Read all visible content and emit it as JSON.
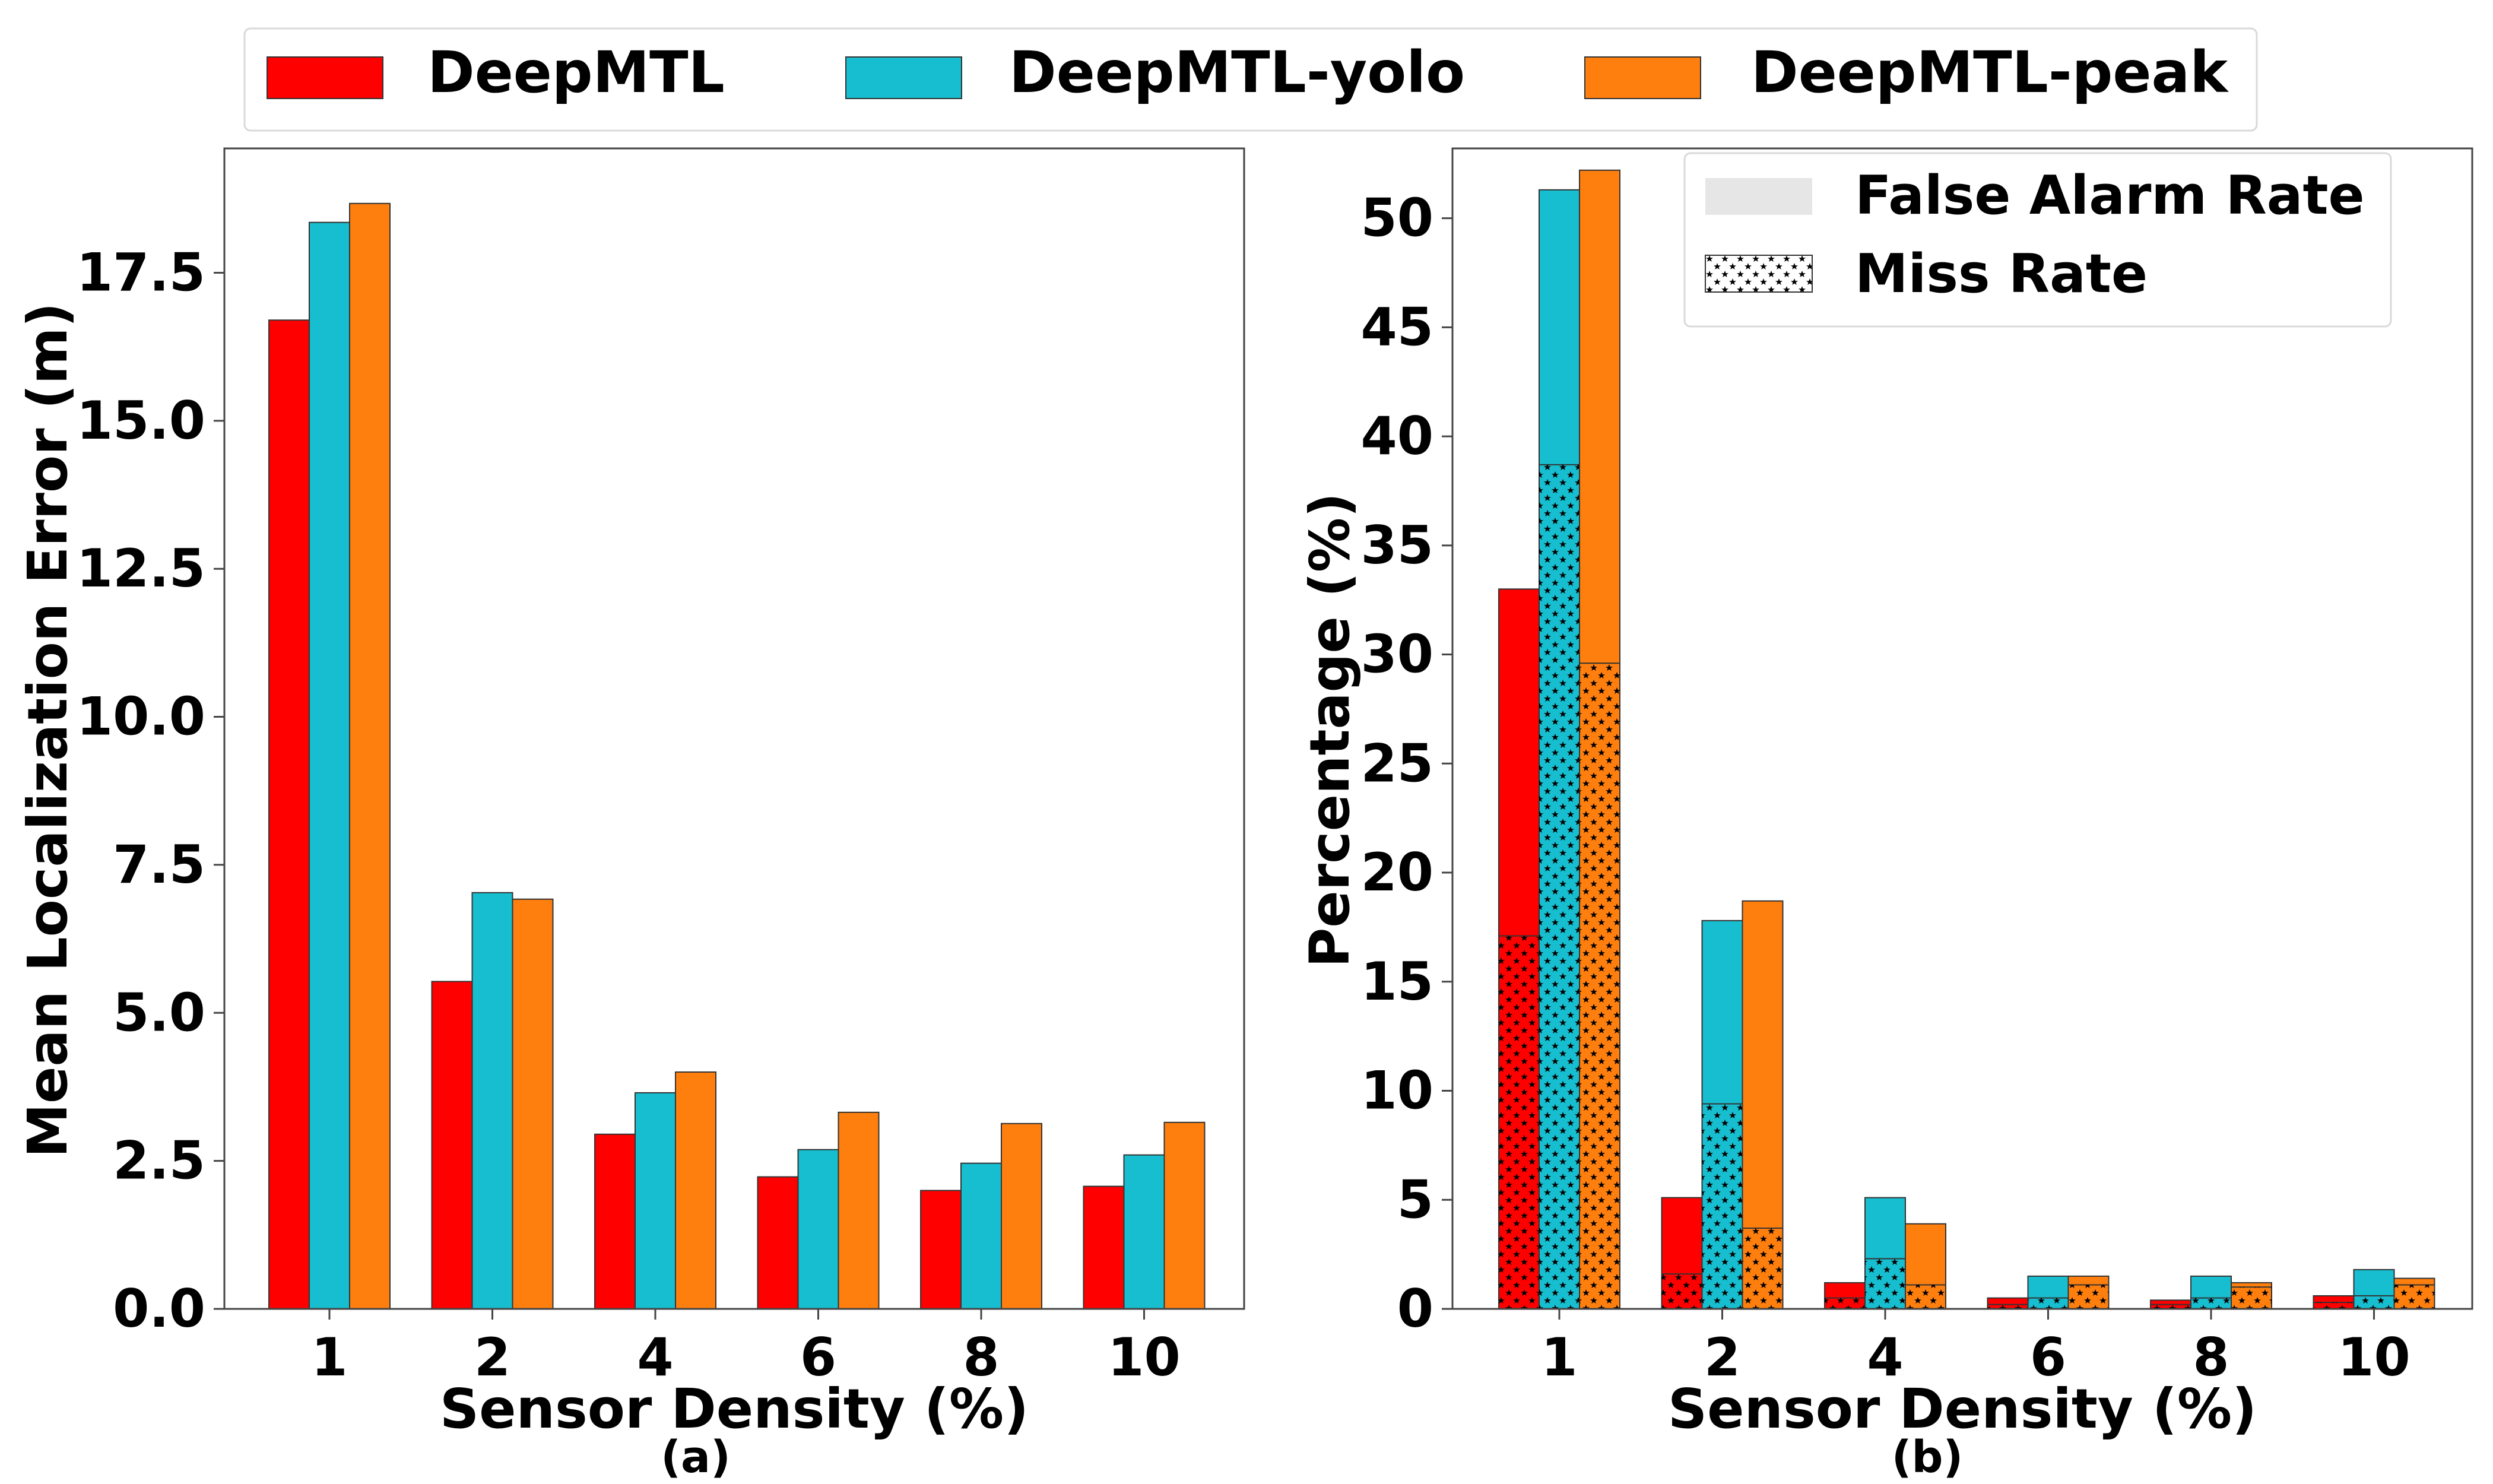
{
  "legend_top": {
    "entries": [
      {
        "name": "DeepMTL",
        "color": "#ff0000"
      },
      {
        "name": "DeepMTL-yolo",
        "color": "#17becf"
      },
      {
        "name": "DeepMTL-peak",
        "color": "#ff7f0e"
      }
    ]
  },
  "chart_data": [
    {
      "type": "bar",
      "panel": "(a)",
      "xlabel": "Sensor Density (%)",
      "ylabel": "Mean Localization Error (m)",
      "categories": [
        "1",
        "2",
        "4",
        "6",
        "8",
        "10"
      ],
      "ylim": [
        0,
        19.6
      ],
      "yticks": [
        "0.0",
        "2.5",
        "5.0",
        "7.5",
        "10.0",
        "12.5",
        "15.0",
        "17.5"
      ],
      "grid": false,
      "series": [
        {
          "name": "DeepMTL",
          "color": "#ff0000",
          "values": [
            16.7,
            5.53,
            2.95,
            2.23,
            2.0,
            2.07
          ]
        },
        {
          "name": "DeepMTL-yolo",
          "color": "#17becf",
          "values": [
            18.35,
            7.03,
            3.65,
            2.69,
            2.46,
            2.6
          ]
        },
        {
          "name": "DeepMTL-peak",
          "color": "#ff7f0e",
          "values": [
            18.67,
            6.92,
            4.0,
            3.32,
            3.13,
            3.15
          ]
        }
      ]
    },
    {
      "type": "bar",
      "stacked": true,
      "panel": "(b)",
      "xlabel": "Sensor Density (%)",
      "ylabel": "Percentage (%)",
      "categories": [
        "1",
        "2",
        "4",
        "6",
        "8",
        "10"
      ],
      "ylim": [
        0,
        53.2
      ],
      "yticks": [
        "0",
        "5",
        "10",
        "15",
        "20",
        "25",
        "30",
        "35",
        "40",
        "45",
        "50"
      ],
      "grid": false,
      "legend": {
        "placement": "top-right",
        "entries": [
          {
            "name": "False Alarm Rate",
            "color": "#e6e6e6",
            "pattern": "none"
          },
          {
            "name": "Miss Rate",
            "color": "#ffffff",
            "pattern": "stars"
          }
        ]
      },
      "series": [
        {
          "name": "DeepMTL",
          "color": "#ff0000",
          "miss_rate": [
            17.1,
            1.6,
            0.5,
            0.2,
            0.2,
            0.3
          ],
          "total": [
            33.0,
            5.1,
            1.2,
            0.5,
            0.4,
            0.6
          ]
        },
        {
          "name": "DeepMTL-yolo",
          "color": "#17becf",
          "miss_rate": [
            38.7,
            9.4,
            2.3,
            0.5,
            0.5,
            0.6
          ],
          "total": [
            51.3,
            17.8,
            5.1,
            1.5,
            1.5,
            1.8
          ]
        },
        {
          "name": "DeepMTL-peak",
          "color": "#ff7f0e",
          "miss_rate": [
            29.6,
            3.7,
            1.1,
            1.1,
            1.0,
            1.1
          ],
          "total": [
            52.2,
            18.7,
            3.9,
            1.5,
            1.2,
            1.4
          ]
        }
      ]
    }
  ]
}
